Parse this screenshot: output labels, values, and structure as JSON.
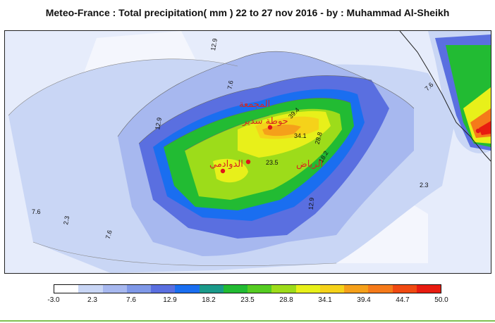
{
  "title": "Meteo-France : Total precipitation( mm ) 22  to 27 nov 2016 - by : Muhammad Al-Sheikh",
  "map": {
    "contour_labels": [
      "12.9",
      "7.6",
      "12.9",
      "39.4",
      "34.1",
      "28.8",
      "23.5",
      "18.2",
      "12.9",
      "7.6",
      "2.3",
      "7.6",
      "7.6",
      "2.3"
    ],
    "places": [
      {
        "name": "المجمعة"
      },
      {
        "name": "حوطة سدير"
      },
      {
        "name": "الدوادمي"
      },
      {
        "name": "الرياض"
      }
    ]
  },
  "legend": {
    "ticks": [
      "-3.0",
      "2.3",
      "7.6",
      "12.9",
      "18.2",
      "23.5",
      "28.8",
      "34.1",
      "39.4",
      "44.7",
      "50.0"
    ],
    "colors": [
      "#ffffff",
      "#c9d6f5",
      "#a7b8ef",
      "#7f98e8",
      "#5a6fe0",
      "#1a6ef0",
      "#1a9a8a",
      "#22bb33",
      "#55cc22",
      "#9ddc1a",
      "#e8f01a",
      "#f5d21a",
      "#f5a01a",
      "#f57a1a",
      "#f04a12",
      "#e81c10"
    ]
  }
}
